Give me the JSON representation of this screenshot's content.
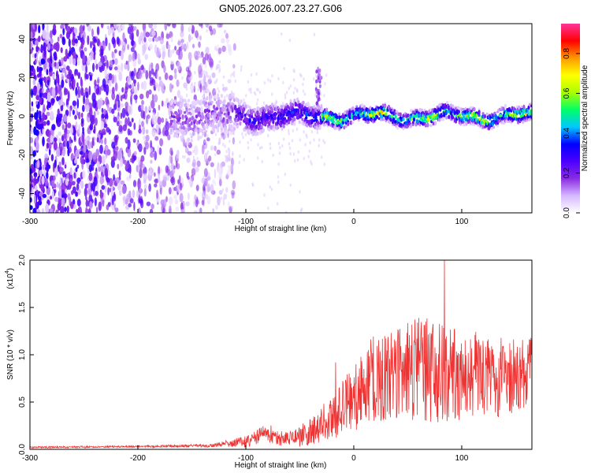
{
  "title": "GN05.2026.007.23.27.G06",
  "colors": {
    "spectrogram_low": "#6a00ff",
    "spectrogram_high": "#ff0000",
    "snr_line": "#ee3333",
    "axis": "#000000"
  },
  "chart_data": [
    {
      "type": "heatmap",
      "name": "spectrogram",
      "xlabel": "Height of straight line (km)",
      "ylabel": "Frequency (Hz)",
      "xlim": [
        -300,
        165
      ],
      "ylim": [
        -50,
        48
      ],
      "xticks": [
        -300,
        -200,
        -100,
        0,
        100
      ],
      "yticks": [
        -40,
        -20,
        0,
        20,
        40
      ],
      "ridge_frequency_hz": 0,
      "noise_region_x": [
        -300,
        -110
      ],
      "noise_reach_x": -110,
      "sparse_spread_x": [
        -300,
        -110
      ],
      "burst_x": [
        -35,
        -30
      ],
      "burst_freq_hz": [
        5,
        25
      ],
      "colorbar": {
        "label": "Normalized spectral amplitude",
        "range": [
          0,
          0.95
        ],
        "ticks": [
          "0.0",
          "0.2",
          "0.4",
          "0.6",
          "0.8"
        ],
        "tick_values": [
          0.0,
          0.2,
          0.4,
          0.6,
          0.8
        ],
        "colormap": [
          "#ffffff",
          "#d6b8ff",
          "#8a2be2",
          "#4b00ff",
          "#0000ff",
          "#00c8ff",
          "#00ff66",
          "#aaff00",
          "#ffff00",
          "#ff9900",
          "#ff0000",
          "#ff3399"
        ]
      },
      "grid": false
    },
    {
      "type": "line",
      "name": "snr",
      "xlabel": "Height of straight line (km)",
      "ylabel": "SNR (10 * v/v)",
      "y_multiplier_label": "(x10",
      "y_multiplier_exp": "4",
      "y_multiplier_close": ")",
      "xlim": [
        -300,
        165
      ],
      "ylim": [
        0,
        2.0
      ],
      "xticks": [
        -300,
        -200,
        -100,
        0,
        100
      ],
      "yticks": [
        "0.0",
        "0.5",
        "1.0",
        "1.5",
        "2.0"
      ],
      "ytick_values": [
        0.0,
        0.5,
        1.0,
        1.5,
        2.0
      ],
      "envelope": {
        "x": [
          -300,
          -200,
          -130,
          -120,
          -100,
          -80,
          -70,
          -60,
          -40,
          -20,
          0,
          20,
          40,
          60,
          80,
          100,
          120,
          140,
          165
        ],
        "mean": [
          0.02,
          0.03,
          0.04,
          0.06,
          0.08,
          0.18,
          0.12,
          0.1,
          0.18,
          0.35,
          0.55,
          0.7,
          0.8,
          0.85,
          0.82,
          0.8,
          0.78,
          0.75,
          0.78
        ],
        "spread": [
          0.01,
          0.01,
          0.02,
          0.03,
          0.06,
          0.1,
          0.08,
          0.08,
          0.15,
          0.25,
          0.35,
          0.45,
          0.5,
          0.55,
          0.55,
          0.5,
          0.45,
          0.42,
          0.4
        ]
      },
      "peak": {
        "x": 84,
        "y": 2.0
      },
      "grid": false
    }
  ]
}
